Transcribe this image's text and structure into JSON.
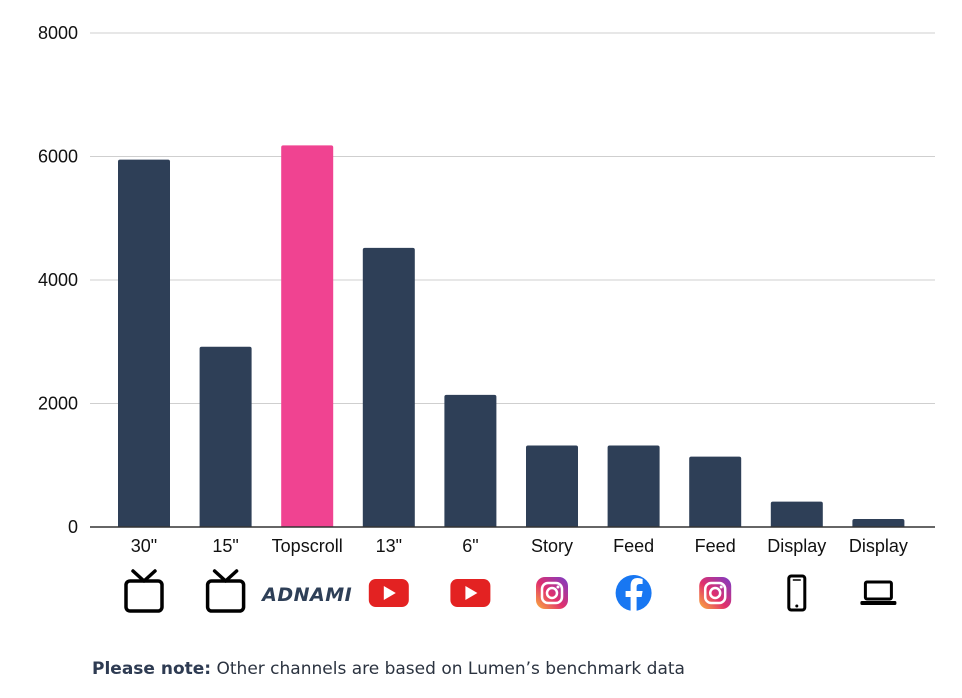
{
  "chart_data": {
    "type": "bar",
    "categories": [
      "30\"",
      "15\"",
      "Topscroll",
      "13\"",
      "6\"",
      "Story",
      "Feed",
      "Feed",
      "Display",
      "Display"
    ],
    "values": [
      5950,
      2920,
      6180,
      4520,
      2140,
      1320,
      1320,
      1140,
      410,
      130
    ],
    "highlight_index": 2,
    "ylim": [
      0,
      8000
    ],
    "yticks": [
      0,
      2000,
      4000,
      6000,
      8000
    ],
    "grid": true,
    "title": "",
    "xlabel": "",
    "ylabel": "",
    "colors": {
      "bar": "#2e3f57",
      "highlight": "#f04391",
      "grid": "#cfcfcf",
      "axis": "#333333"
    },
    "category_icons": [
      "tv-icon",
      "tv-icon",
      "adnami-logo",
      "youtube-icon",
      "youtube-icon",
      "instagram-icon",
      "facebook-icon",
      "instagram-icon",
      "smartphone-icon",
      "laptop-icon"
    ],
    "logo_text": "ADNAMI"
  },
  "note": {
    "bold": "Please note:",
    "text": " Other channels are based on Lumen’s benchmark data"
  }
}
